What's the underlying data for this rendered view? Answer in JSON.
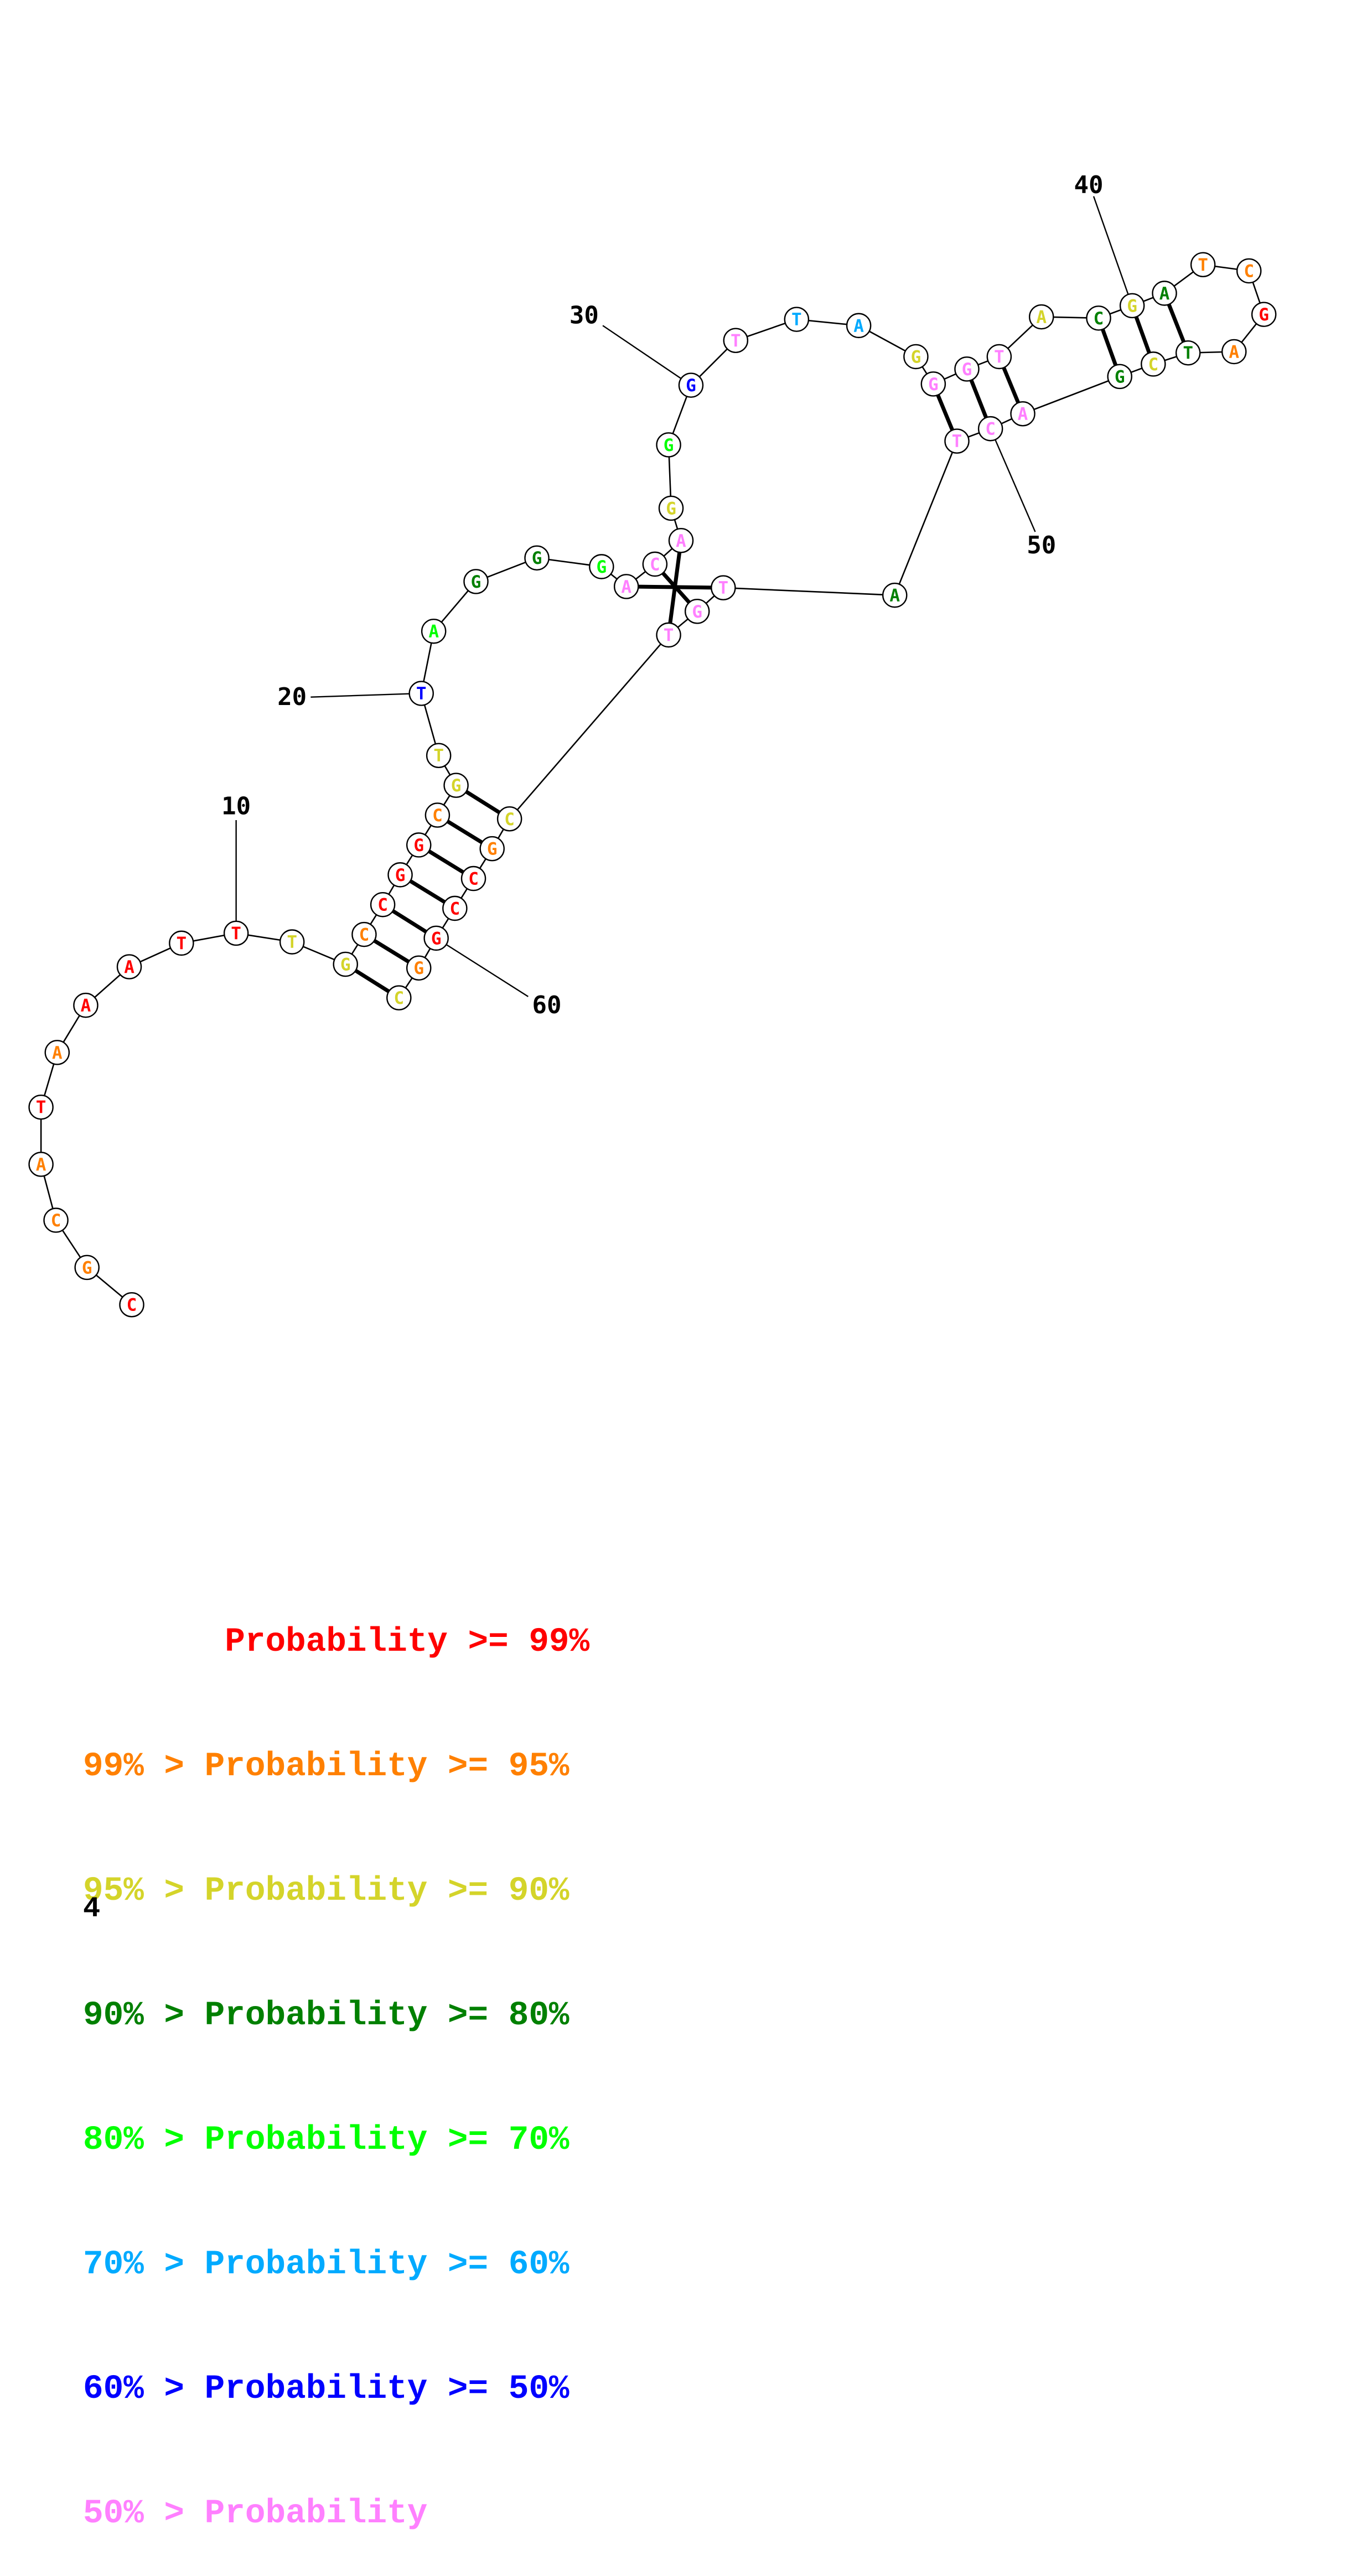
{
  "colors": {
    "p99": "#ff0000",
    "p95": "#ff8000",
    "p90": "#d4d42a",
    "p80": "#008000",
    "p70": "#00ff00",
    "p60": "#00aaff",
    "p50": "#0000ff",
    "plow": "#ff80ff"
  },
  "nucleotides": [
    {
      "n": 1,
      "base": "C",
      "p": "p99"
    },
    {
      "n": 2,
      "base": "G",
      "p": "p95"
    },
    {
      "n": 3,
      "base": "C",
      "p": "p95"
    },
    {
      "n": 4,
      "base": "A",
      "p": "p95"
    },
    {
      "n": 5,
      "base": "T",
      "p": "p99"
    },
    {
      "n": 6,
      "base": "A",
      "p": "p95"
    },
    {
      "n": 7,
      "base": "A",
      "p": "p99"
    },
    {
      "n": 8,
      "base": "A",
      "p": "p99"
    },
    {
      "n": 9,
      "base": "T",
      "p": "p99"
    },
    {
      "n": 10,
      "base": "T",
      "p": "p99"
    },
    {
      "n": 11,
      "base": "T",
      "p": "p90"
    },
    {
      "n": 12,
      "base": "G",
      "p": "p90"
    },
    {
      "n": 13,
      "base": "C",
      "p": "p95"
    },
    {
      "n": 14,
      "base": "C",
      "p": "p99"
    },
    {
      "n": 15,
      "base": "G",
      "p": "p99"
    },
    {
      "n": 16,
      "base": "G",
      "p": "p99"
    },
    {
      "n": 17,
      "base": "C",
      "p": "p95"
    },
    {
      "n": 18,
      "base": "G",
      "p": "p90"
    },
    {
      "n": 19,
      "base": "T",
      "p": "p90"
    },
    {
      "n": 20,
      "base": "T",
      "p": "p50"
    },
    {
      "n": 21,
      "base": "A",
      "p": "p70"
    },
    {
      "n": 22,
      "base": "G",
      "p": "p80"
    },
    {
      "n": 23,
      "base": "G",
      "p": "p80"
    },
    {
      "n": 24,
      "base": "G",
      "p": "p70"
    },
    {
      "n": 25,
      "base": "A",
      "p": "plow"
    },
    {
      "n": 26,
      "base": "C",
      "p": "plow"
    },
    {
      "n": 27,
      "base": "A",
      "p": "plow"
    },
    {
      "n": 28,
      "base": "G",
      "p": "p90"
    },
    {
      "n": 29,
      "base": "G",
      "p": "p70"
    },
    {
      "n": 30,
      "base": "G",
      "p": "p50"
    },
    {
      "n": 31,
      "base": "T",
      "p": "plow"
    },
    {
      "n": 32,
      "base": "T",
      "p": "p60"
    },
    {
      "n": 33,
      "base": "A",
      "p": "p60"
    },
    {
      "n": 34,
      "base": "G",
      "p": "p90"
    },
    {
      "n": 35,
      "base": "G",
      "p": "plow"
    },
    {
      "n": 36,
      "base": "G",
      "p": "plow"
    },
    {
      "n": 37,
      "base": "T",
      "p": "plow"
    },
    {
      "n": 38,
      "base": "A",
      "p": "p90"
    },
    {
      "n": 39,
      "base": "C",
      "p": "p80"
    },
    {
      "n": 40,
      "base": "G",
      "p": "p90"
    },
    {
      "n": 41,
      "base": "A",
      "p": "p80"
    },
    {
      "n": 42,
      "base": "T",
      "p": "p95"
    },
    {
      "n": 43,
      "base": "C",
      "p": "p95"
    },
    {
      "n": 44,
      "base": "G",
      "p": "p99"
    },
    {
      "n": 45,
      "base": "A",
      "p": "p95"
    },
    {
      "n": 46,
      "base": "T",
      "p": "p80"
    },
    {
      "n": 47,
      "base": "C",
      "p": "p90"
    },
    {
      "n": 48,
      "base": "G",
      "p": "p80"
    },
    {
      "n": 49,
      "base": "A",
      "p": "plow"
    },
    {
      "n": 50,
      "base": "C",
      "p": "plow"
    },
    {
      "n": 51,
      "base": "T",
      "p": "plow"
    },
    {
      "n": 52,
      "base": "A",
      "p": "p80"
    },
    {
      "n": 53,
      "base": "T",
      "p": "plow"
    },
    {
      "n": 54,
      "base": "G",
      "p": "plow"
    },
    {
      "n": 55,
      "base": "T",
      "p": "plow"
    },
    {
      "n": 56,
      "base": "C",
      "p": "p90"
    },
    {
      "n": 57,
      "base": "G",
      "p": "p95"
    },
    {
      "n": 58,
      "base": "C",
      "p": "p99"
    },
    {
      "n": 59,
      "base": "C",
      "p": "p99"
    },
    {
      "n": 60,
      "base": "G",
      "p": "p99"
    },
    {
      "n": 61,
      "base": "G",
      "p": "p95"
    },
    {
      "n": 62,
      "base": "C",
      "p": "p90"
    }
  ],
  "pairs": [
    [
      12,
      62
    ],
    [
      13,
      61
    ],
    [
      14,
      60
    ],
    [
      15,
      59
    ],
    [
      16,
      58
    ],
    [
      17,
      57
    ],
    [
      18,
      56
    ],
    [
      25,
      53
    ],
    [
      26,
      54
    ],
    [
      27,
      55
    ],
    [
      35,
      51
    ],
    [
      36,
      50
    ],
    [
      37,
      49
    ],
    [
      39,
      48
    ],
    [
      40,
      47
    ],
    [
      41,
      46
    ]
  ],
  "position_labels": [
    {
      "text": "10",
      "n": 10
    },
    {
      "text": "20",
      "n": 20
    },
    {
      "text": "30",
      "n": 30
    },
    {
      "text": "40",
      "n": 40
    },
    {
      "text": "50",
      "n": 50
    },
    {
      "text": "60",
      "n": 60
    }
  ],
  "legend": [
    {
      "range": "       Probability >= 99%",
      "color": "p99"
    },
    {
      "range": "99% > Probability >= 95%",
      "color": "p95"
    },
    {
      "range": "95% > Probability >= 90%",
      "color": "p90"
    },
    {
      "range": "90% > Probability >= 80%",
      "color": "p80"
    },
    {
      "range": "80% > Probability >= 70%",
      "color": "p70"
    },
    {
      "range": "70% > Probability >= 60%",
      "color": "p60"
    },
    {
      "range": "60% > Probability >= 50%",
      "color": "p50"
    },
    {
      "range": "50% > Probability",
      "color": "plow"
    }
  ],
  "page_number": "4"
}
